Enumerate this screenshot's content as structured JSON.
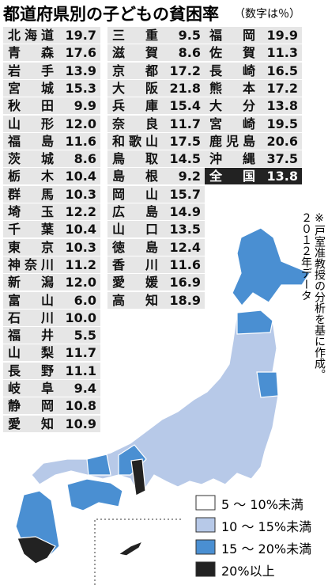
{
  "title": "都道府県別の子どもの貧困率",
  "subtitle": "（数字は％）",
  "table": {
    "columns": [
      {
        "rows": [
          {
            "name": "北海道",
            "value": "19.7"
          },
          {
            "name": "青森",
            "value": "17.6"
          },
          {
            "name": "岩手",
            "value": "13.9"
          },
          {
            "name": "宮城",
            "value": "15.3"
          },
          {
            "name": "秋田",
            "value": "9.9"
          },
          {
            "name": "山形",
            "value": "12.0"
          },
          {
            "name": "福島",
            "value": "11.6"
          },
          {
            "name": "茨城",
            "value": "8.6"
          },
          {
            "name": "栃木",
            "value": "10.4"
          },
          {
            "name": "群馬",
            "value": "10.3"
          },
          {
            "name": "埼玉",
            "value": "12.2"
          },
          {
            "name": "千葉",
            "value": "10.4"
          },
          {
            "name": "東京",
            "value": "10.3"
          },
          {
            "name": "神奈川",
            "value": "11.2"
          },
          {
            "name": "新潟",
            "value": "12.0"
          },
          {
            "name": "富山",
            "value": "6.0"
          },
          {
            "name": "石川",
            "value": "10.0"
          },
          {
            "name": "福井",
            "value": "5.5"
          },
          {
            "name": "山梨",
            "value": "11.7"
          },
          {
            "name": "長野",
            "value": "11.1"
          },
          {
            "name": "岐阜",
            "value": "9.4"
          },
          {
            "name": "静岡",
            "value": "10.8"
          },
          {
            "name": "愛知",
            "value": "10.9"
          }
        ]
      },
      {
        "rows": [
          {
            "name": "三重",
            "value": "9.5"
          },
          {
            "name": "滋賀",
            "value": "8.6"
          },
          {
            "name": "京都",
            "value": "17.2"
          },
          {
            "name": "大阪",
            "value": "21.8"
          },
          {
            "name": "兵庫",
            "value": "15.4"
          },
          {
            "name": "奈良",
            "value": "11.7"
          },
          {
            "name": "和歌山",
            "value": "17.5"
          },
          {
            "name": "鳥取",
            "value": "14.5"
          },
          {
            "name": "島根",
            "value": "9.2"
          },
          {
            "name": "岡山",
            "value": "15.7"
          },
          {
            "name": "広島",
            "value": "14.9"
          },
          {
            "name": "山口",
            "value": "13.5"
          },
          {
            "name": "徳島",
            "value": "12.4"
          },
          {
            "name": "香川",
            "value": "11.6"
          },
          {
            "name": "愛媛",
            "value": "16.9"
          },
          {
            "name": "高知",
            "value": "18.9"
          }
        ]
      },
      {
        "rows": [
          {
            "name": "福岡",
            "value": "19.9"
          },
          {
            "name": "佐賀",
            "value": "11.3"
          },
          {
            "name": "長崎",
            "value": "16.5"
          },
          {
            "name": "熊本",
            "value": "17.2"
          },
          {
            "name": "大分",
            "value": "13.8"
          },
          {
            "name": "宮崎",
            "value": "19.5"
          },
          {
            "name": "鹿児島",
            "value": "20.6"
          },
          {
            "name": "沖縄",
            "value": "37.5"
          }
        ]
      }
    ],
    "total": {
      "name": "全国",
      "value": "13.8"
    }
  },
  "note": [
    "※戸室准教授の分析を基に作成。",
    "２０１２年データ"
  ],
  "legend": [
    "5 〜 10%未満",
    "10 〜 15%未満",
    "15 〜 20%未満",
    "20%以上"
  ]
}
